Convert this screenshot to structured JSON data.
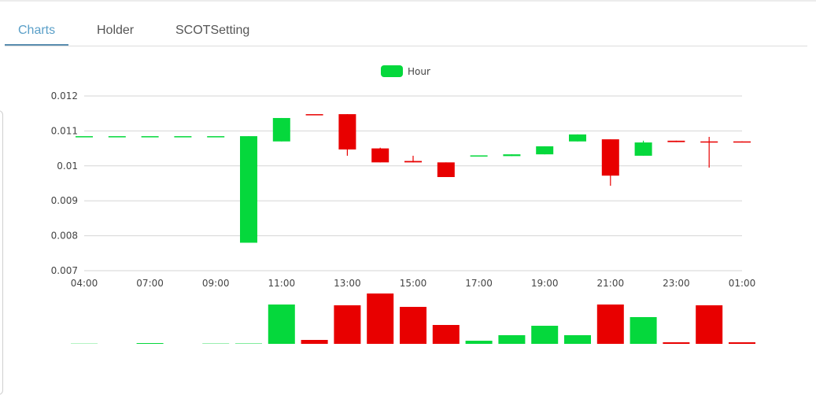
{
  "tabs": [
    {
      "label": "Charts",
      "active": true
    },
    {
      "label": "Holder",
      "active": false
    },
    {
      "label": "SCOTSetting",
      "active": false
    }
  ],
  "colors": {
    "up": "#05d83c",
    "down": "#e80000",
    "accent": "#5a9fc8"
  },
  "chart_data": {
    "type": "candlestick",
    "legend": {
      "label": "Hour",
      "color": "#05d83c",
      "position": "top-center"
    },
    "ylim": [
      0.007,
      0.012
    ],
    "y_ticks": [
      "0.007",
      "0.008",
      "0.009",
      "0.01",
      "0.011",
      "0.012"
    ],
    "x_tick_labels": [
      "04:00",
      "07:00",
      "09:00",
      "11:00",
      "13:00",
      "15:00",
      "17:00",
      "19:00",
      "21:00",
      "23:00",
      "01:00"
    ],
    "grid": true,
    "candles": [
      {
        "o": 0.01085,
        "h": 0.01085,
        "l": 0.01085,
        "c": 0.01085,
        "vol": 0.3,
        "dir": "up"
      },
      {
        "o": 0.01085,
        "h": 0.01085,
        "l": 0.01085,
        "c": 0.01085,
        "vol": 0,
        "dir": "up"
      },
      {
        "o": 0.01085,
        "h": 0.01085,
        "l": 0.01085,
        "c": 0.01085,
        "vol": 1,
        "dir": "up"
      },
      {
        "o": 0.01085,
        "h": 0.01085,
        "l": 0.01085,
        "c": 0.01085,
        "vol": 0,
        "dir": "up"
      },
      {
        "o": 0.01085,
        "h": 0.01085,
        "l": 0.01085,
        "c": 0.01085,
        "vol": 0.4,
        "dir": "up"
      },
      {
        "o": 0.0078,
        "h": 0.01085,
        "l": 0.0078,
        "c": 0.01085,
        "vol": 0.5,
        "dir": "up"
      },
      {
        "o": 0.0107,
        "h": 0.01137,
        "l": 0.0107,
        "c": 0.01137,
        "vol": 50,
        "dir": "up"
      },
      {
        "o": 0.01148,
        "h": 0.01148,
        "l": 0.01148,
        "c": 0.01145,
        "vol": 5,
        "dir": "down"
      },
      {
        "o": 0.01148,
        "h": 0.01148,
        "l": 0.01029,
        "c": 0.01047,
        "vol": 49,
        "dir": "down"
      },
      {
        "o": 0.0105,
        "h": 0.01052,
        "l": 0.0101,
        "c": 0.0101,
        "vol": 64,
        "dir": "down"
      },
      {
        "o": 0.01014,
        "h": 0.01029,
        "l": 0.0101,
        "c": 0.0101,
        "vol": 47,
        "dir": "down"
      },
      {
        "o": 0.0101,
        "h": 0.0101,
        "l": 0.00968,
        "c": 0.00968,
        "vol": 24,
        "dir": "down"
      },
      {
        "o": 0.01029,
        "h": 0.01029,
        "l": 0.01029,
        "c": 0.0103,
        "vol": 4,
        "dir": "up"
      },
      {
        "o": 0.01028,
        "h": 0.01033,
        "l": 0.01028,
        "c": 0.01033,
        "vol": 11,
        "dir": "up"
      },
      {
        "o": 0.01033,
        "h": 0.01056,
        "l": 0.01033,
        "c": 0.01056,
        "vol": 23,
        "dir": "up"
      },
      {
        "o": 0.0107,
        "h": 0.0109,
        "l": 0.0107,
        "c": 0.0109,
        "vol": 11,
        "dir": "up"
      },
      {
        "o": 0.01076,
        "h": 0.01076,
        "l": 0.00943,
        "c": 0.00972,
        "vol": 50,
        "dir": "down"
      },
      {
        "o": 0.01029,
        "h": 0.01072,
        "l": 0.01029,
        "c": 0.01067,
        "vol": 34,
        "dir": "up"
      },
      {
        "o": 0.01072,
        "h": 0.01072,
        "l": 0.01068,
        "c": 0.01068,
        "vol": 2,
        "dir": "down"
      },
      {
        "o": 0.0107,
        "h": 0.01083,
        "l": 0.00995,
        "c": 0.01069,
        "vol": 49,
        "dir": "down"
      },
      {
        "o": 0.0107,
        "h": 0.0107,
        "l": 0.01069,
        "c": 0.01069,
        "vol": 2,
        "dir": "down"
      }
    ]
  }
}
